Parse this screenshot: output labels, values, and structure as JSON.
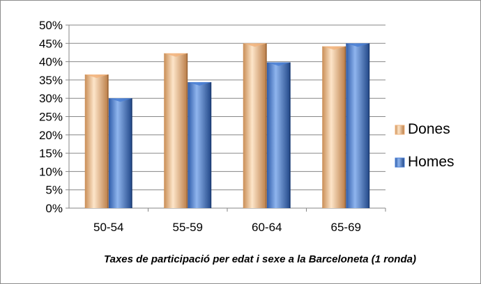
{
  "chart_data": {
    "type": "bar",
    "title": "",
    "caption": "Taxes de participació per edat i sexe a la Barceloneta (1 ronda)",
    "xlabel": "",
    "ylabel": "",
    "categories": [
      "50-54",
      "55-59",
      "60-64",
      "65-69"
    ],
    "series": [
      {
        "name": "Dones",
        "values": [
          36.5,
          42.3,
          45.0,
          44.2
        ],
        "color": "#f2b47e"
      },
      {
        "name": "Homes",
        "values": [
          30.0,
          34.4,
          39.8,
          45.0
        ],
        "color": "#4a7fd4"
      }
    ],
    "ylim": [
      0,
      50
    ],
    "yticks": [
      "0%",
      "5%",
      "10%",
      "15%",
      "20%",
      "25%",
      "30%",
      "35%",
      "40%",
      "45%",
      "50%"
    ],
    "grid": true,
    "legend_position": "right",
    "style": "3d-cylinder-bars"
  }
}
